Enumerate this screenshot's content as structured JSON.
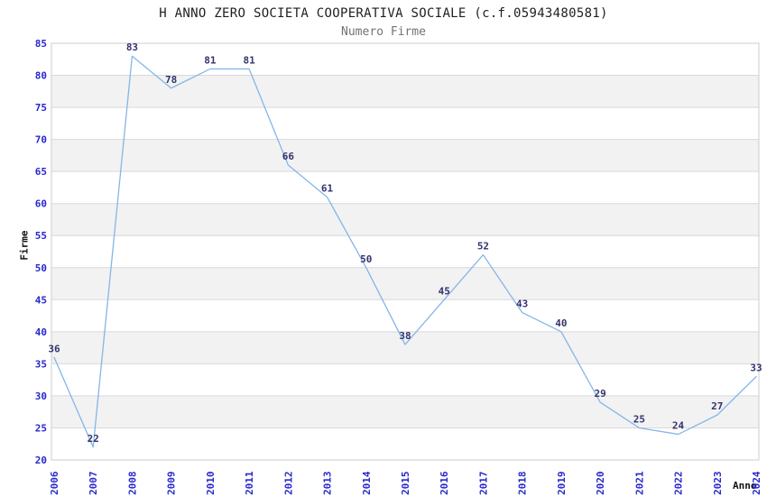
{
  "header": {
    "title": "H ANNO ZERO SOCIETA COOPERATIVA SOCIALE (c.f.05943480581)",
    "subtitle": "Numero Firme"
  },
  "chart_data": {
    "type": "line",
    "title": "H ANNO ZERO SOCIETA COOPERATIVA SOCIALE (c.f.05943480581)",
    "subtitle": "Numero Firme",
    "xlabel": "Anno",
    "ylabel": "Firme",
    "categories": [
      "2006",
      "2007",
      "2008",
      "2009",
      "2010",
      "2011",
      "2012",
      "2013",
      "2014",
      "2015",
      "2016",
      "2017",
      "2018",
      "2019",
      "2020",
      "2021",
      "2022",
      "2023",
      "2024"
    ],
    "values": [
      36,
      22,
      83,
      78,
      81,
      81,
      66,
      61,
      50,
      38,
      45,
      52,
      43,
      40,
      29,
      25,
      24,
      27,
      33
    ],
    "ylim": [
      20,
      85
    ],
    "ytick_step": 5,
    "grid": true,
    "legend_position": "none",
    "data_labels_shown": true,
    "colors": {
      "line": "#84b6e8",
      "tick_label": "#2828cc",
      "data_label": "#333370",
      "band": "#f2f2f2",
      "gridline": "#d9d9d9",
      "plot_border": "#cccccc",
      "title": "#1f1f1f",
      "subtitle": "#737373",
      "background": "#ffffff"
    }
  }
}
